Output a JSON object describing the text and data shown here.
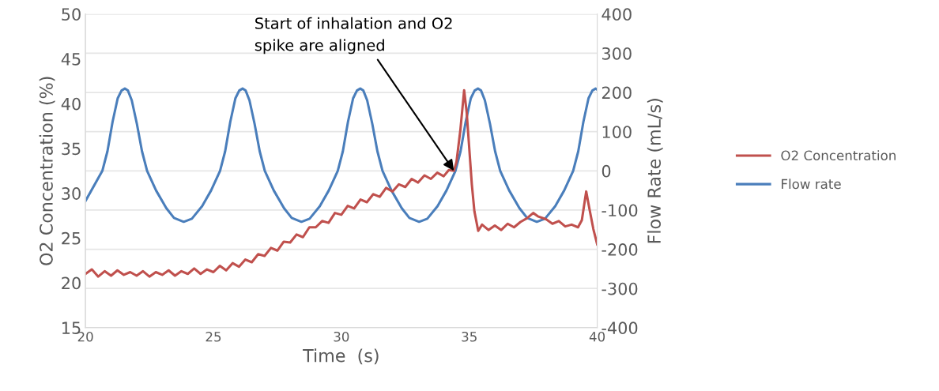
{
  "chart_data": {
    "type": "line",
    "xlabel": "Time  (s)",
    "ylabel": "O2 Concentration (%)",
    "y2label": "Flow Rate (mL/s)",
    "xlim": [
      20,
      40
    ],
    "xticks": [
      20,
      25,
      30,
      35,
      40
    ],
    "ylim": [
      15,
      50
    ],
    "yticks": [
      15,
      20,
      25,
      30,
      35,
      40,
      45,
      50
    ],
    "y2lim": [
      -400,
      400
    ],
    "y2ticks": [
      -400,
      -300,
      -200,
      -100,
      0,
      100,
      200,
      300,
      400
    ],
    "grid": "y",
    "legend": "right",
    "marker": "none",
    "line_style": "solid",
    "annotations": [
      {
        "text": "Start of inhalation and O2\nspike are aligned",
        "x": 34.4,
        "y": 32.5
      }
    ],
    "series": [
      {
        "name": "O2 Concentration",
        "color": "#c0504d",
        "x": [
          20,
          20.25,
          20.5,
          20.75,
          21,
          21.25,
          21.5,
          21.75,
          22,
          22.25,
          22.5,
          22.75,
          23,
          23.25,
          23.5,
          23.75,
          24,
          24.25,
          24.5,
          24.75,
          25,
          25.25,
          25.5,
          25.75,
          26,
          26.25,
          26.5,
          26.75,
          27,
          27.25,
          27.5,
          27.75,
          28,
          28.25,
          28.5,
          28.75,
          29,
          29.25,
          29.5,
          29.75,
          30,
          30.25,
          30.5,
          30.75,
          31,
          31.25,
          31.5,
          31.75,
          32,
          32.25,
          32.5,
          32.75,
          33,
          33.25,
          33.5,
          33.75,
          34,
          34.2,
          34.4,
          34.5,
          34.65,
          34.8,
          34.9,
          35,
          35.1,
          35.2,
          35.35,
          35.5,
          35.75,
          36,
          36.25,
          36.5,
          36.75,
          37,
          37.25,
          37.5,
          37.7,
          38,
          38.25,
          38.5,
          38.75,
          39,
          39.25,
          39.4,
          39.57,
          39.7,
          39.85,
          40
        ],
        "values": [
          21.0,
          21.5,
          20.7,
          21.3,
          20.8,
          21.4,
          20.9,
          21.2,
          20.8,
          21.3,
          20.7,
          21.2,
          20.9,
          21.4,
          20.8,
          21.3,
          21.0,
          21.6,
          21.0,
          21.5,
          21.2,
          21.9,
          21.4,
          22.2,
          21.8,
          22.6,
          22.3,
          23.2,
          23.0,
          23.9,
          23.6,
          24.6,
          24.5,
          25.4,
          25.1,
          26.2,
          26.2,
          26.9,
          26.7,
          27.8,
          27.6,
          28.6,
          28.3,
          29.3,
          29.0,
          29.9,
          29.6,
          30.6,
          30.2,
          31.0,
          30.7,
          31.6,
          31.2,
          32.0,
          31.6,
          32.3,
          31.9,
          32.6,
          32.5,
          33.5,
          37.0,
          41.5,
          39.0,
          35.0,
          31.0,
          28.0,
          25.8,
          26.5,
          25.9,
          26.4,
          25.9,
          26.6,
          26.2,
          26.8,
          27.2,
          27.8,
          27.4,
          27.1,
          26.6,
          26.9,
          26.3,
          26.5,
          26.2,
          27.0,
          30.2,
          28.2,
          26.0,
          24.3
        ]
      },
      {
        "name": "Flow rate",
        "color": "#4a7ebb",
        "axis": "y2",
        "x": [
          20,
          20.66,
          20.86,
          21.06,
          21.26,
          21.41,
          21.54,
          21.66,
          21.81,
          22.01,
          22.21,
          22.41,
          22.76,
          23.16,
          23.46,
          23.84,
          24.16,
          24.56,
          24.91,
          25.26,
          25.46,
          25.66,
          25.86,
          26.01,
          26.14,
          26.26,
          26.41,
          26.61,
          26.81,
          27.01,
          27.36,
          27.76,
          28.06,
          28.44,
          28.76,
          29.16,
          29.51,
          29.86,
          30.06,
          30.26,
          30.46,
          30.61,
          30.74,
          30.86,
          31.01,
          31.21,
          31.41,
          31.61,
          31.96,
          32.36,
          32.66,
          33.04,
          33.36,
          33.76,
          34.11,
          34.46,
          34.66,
          34.86,
          35.06,
          35.21,
          35.34,
          35.46,
          35.61,
          35.81,
          36.01,
          36.21,
          36.56,
          36.96,
          37.26,
          37.64,
          37.96,
          38.36,
          38.71,
          39.06,
          39.26,
          39.46,
          39.66,
          39.81,
          39.94,
          40
        ],
        "values": [
          -77,
          0,
          50,
          125,
          185,
          205,
          210,
          205,
          180,
          120,
          50,
          0,
          -50,
          -95,
          -120,
          -130,
          -122,
          -90,
          -50,
          0,
          50,
          125,
          185,
          205,
          210,
          205,
          180,
          120,
          50,
          0,
          -50,
          -95,
          -120,
          -130,
          -122,
          -90,
          -50,
          0,
          50,
          125,
          185,
          205,
          210,
          205,
          180,
          120,
          50,
          0,
          -50,
          -95,
          -120,
          -130,
          -122,
          -90,
          -50,
          0,
          50,
          125,
          185,
          205,
          210,
          205,
          180,
          120,
          50,
          0,
          -50,
          -95,
          -120,
          -130,
          -122,
          -90,
          -50,
          0,
          50,
          125,
          185,
          205,
          210,
          207
        ]
      }
    ]
  }
}
